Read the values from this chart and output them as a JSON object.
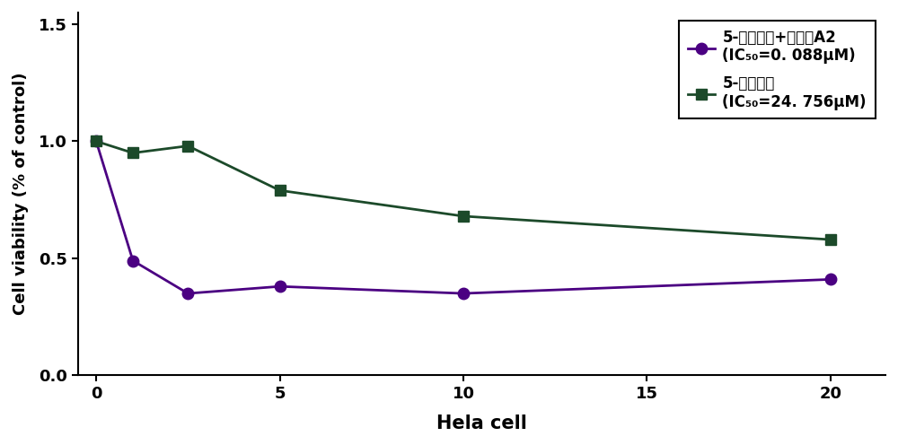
{
  "x": [
    0,
    1,
    2.5,
    5,
    10,
    20
  ],
  "y_combo": [
    1.0,
    0.49,
    0.35,
    0.38,
    0.35,
    0.41
  ],
  "y_5fu": [
    1.0,
    0.95,
    0.98,
    0.79,
    0.68,
    0.58
  ],
  "combo_color": "#4B0082",
  "fu_color": "#1C4A2A",
  "combo_label_line1": "5-氟尿噅啊+合成物A2",
  "combo_label_line2": "(IC₅₀=0. 088μM)",
  "fu_label_line1": "5-氟尿噅啊",
  "fu_label_line2": "(IC₅₀=24. 756μM)",
  "xlabel": "Hela cell",
  "ylabel": "Cell viability (% of control)",
  "xlim": [
    -0.5,
    21.5
  ],
  "ylim": [
    0.0,
    1.55
  ],
  "xticks": [
    0,
    5,
    10,
    15,
    20
  ],
  "yticks": [
    0.0,
    0.5,
    1.0,
    1.5
  ],
  "background_color": "#ffffff",
  "linewidth": 2.0,
  "markersize": 9
}
